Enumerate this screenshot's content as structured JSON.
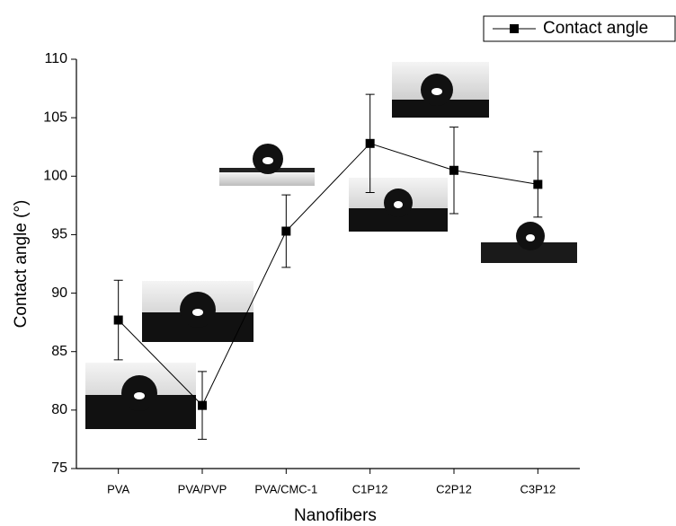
{
  "chart_data": {
    "type": "line",
    "x_label": "Nanofibers",
    "y_label": "Contact angle (°)",
    "categories": [
      "PVA",
      "PVA/PVP",
      "PVA/CMC-1",
      "C1P12",
      "C2P12",
      "C3P12"
    ],
    "series": [
      {
        "name": "Contact angle",
        "color": "#000000",
        "values": [
          87.7,
          80.4,
          95.3,
          102.8,
          100.5,
          99.3
        ],
        "errors": [
          3.4,
          2.9,
          3.1,
          4.2,
          3.7,
          2.8
        ]
      }
    ],
    "ylim": [
      75,
      110
    ],
    "yticks": [
      75,
      80,
      85,
      90,
      95,
      100,
      105,
      110
    ],
    "grid": false,
    "legend": "top-right"
  }
}
